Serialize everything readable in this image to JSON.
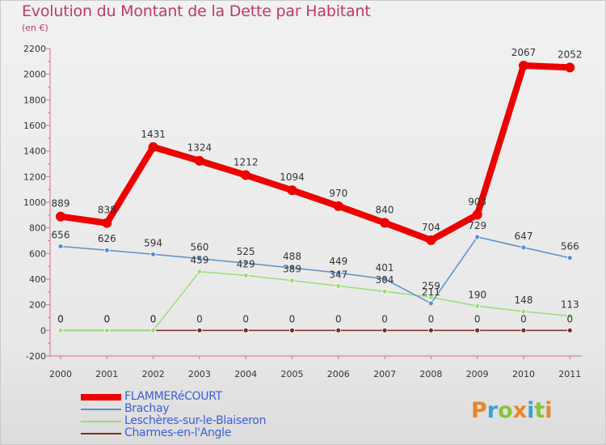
{
  "title": "Evolution du Montant de la Dette par Habitant",
  "unit": "(en €)",
  "logo": [
    "P",
    "r",
    "o",
    "x",
    "i",
    "t",
    "i"
  ],
  "colors": {
    "flammerecourt": "#ee0000",
    "brachay": "#5b8fcc",
    "lescheres": "#99dd77",
    "charmes": "#7a2a2a",
    "axis_text": "#333333",
    "label_text": "#333333"
  },
  "chart_data": {
    "type": "line",
    "title": "Evolution du Montant de la Dette par Habitant",
    "ylabel": "(en €)",
    "xlabel": "",
    "x": [
      "2000",
      "2001",
      "2002",
      "2003",
      "2004",
      "2005",
      "2006",
      "2007",
      "2008",
      "2009",
      "2010",
      "2011"
    ],
    "ylim": [
      -200,
      2200
    ],
    "yticks": [
      -200,
      0,
      200,
      400,
      600,
      800,
      1000,
      1200,
      1400,
      1600,
      1800,
      2000,
      2200
    ],
    "yticklabels": [
      "-200",
      "0",
      "200",
      "400",
      "600",
      "800",
      "1000",
      "1200",
      "1400",
      "1600",
      "1800",
      "2000",
      "2200"
    ],
    "legend_position": "bottom-left",
    "series": [
      {
        "name": "FLAMMERéCOURT",
        "key": "flammerecourt",
        "values": [
          889,
          838,
          1431,
          1324,
          1212,
          1094,
          970,
          840,
          704,
          903,
          2067,
          2052
        ],
        "labels": [
          "889",
          "838",
          "1431",
          "1324",
          "1212",
          "1094",
          "970",
          "840",
          "704",
          "903",
          "2067",
          "2052"
        ]
      },
      {
        "name": "Brachay",
        "key": "brachay",
        "values": [
          656,
          626,
          594,
          560,
          525,
          488,
          449,
          401,
          211,
          729,
          647,
          566
        ],
        "labels": [
          "656",
          "626",
          "594",
          "560",
          "525",
          "488",
          "449",
          "401",
          "211",
          "729",
          "647",
          "566"
        ]
      },
      {
        "name": "Leschères-sur-le-Blaiseron",
        "key": "lescheres",
        "values": [
          0,
          0,
          0,
          459,
          429,
          389,
          347,
          304,
          259,
          190,
          148,
          113
        ],
        "labels": [
          "0",
          "0",
          "0",
          "459",
          "429",
          "389",
          "347",
          "304",
          "259",
          "190",
          "148",
          "113"
        ]
      },
      {
        "name": "Charmes-en-l'Angle",
        "key": "charmes",
        "values": [
          0,
          0,
          0,
          0,
          0,
          0,
          0,
          0,
          0,
          0,
          0,
          0
        ],
        "labels": [
          "0",
          "0",
          "0",
          "0",
          "0",
          "0",
          "0",
          "0",
          "0",
          "0",
          "0",
          "0"
        ]
      }
    ]
  }
}
